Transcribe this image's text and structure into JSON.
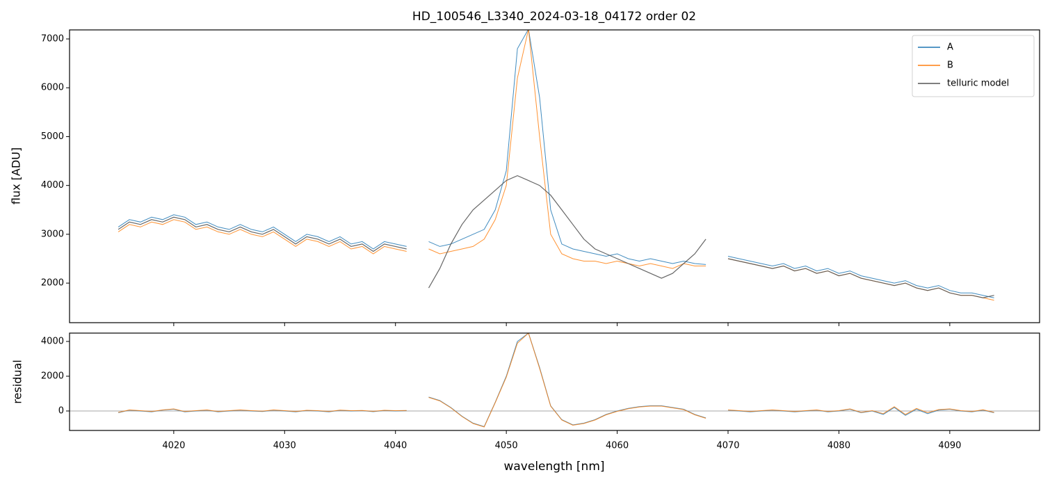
{
  "chart_data": [
    {
      "type": "line",
      "title": "HD_100546_L3340_2024-03-18_04172  order 02",
      "ylabel": "flux [ADU]",
      "x": [
        4015,
        4016,
        4017,
        4018,
        4019,
        4020,
        4021,
        4022,
        4023,
        4024,
        4025,
        4026,
        4027,
        4028,
        4029,
        4030,
        4031,
        4032,
        4033,
        4034,
        4035,
        4036,
        4037,
        4038,
        4039,
        4040,
        4041,
        4042,
        4043,
        4044,
        4045,
        4046,
        4047,
        4048,
        4049,
        4050,
        4051,
        4052,
        4053,
        4054,
        4055,
        4056,
        4057,
        4058,
        4059,
        4060,
        4061,
        4062,
        4063,
        4064,
        4065,
        4066,
        4067,
        4068,
        4069,
        4070,
        4071,
        4072,
        4073,
        4074,
        4075,
        4076,
        4077,
        4078,
        4079,
        4080,
        4081,
        4082,
        4083,
        4084,
        4085,
        4086,
        4087,
        4088,
        4089,
        4090,
        4091,
        4092,
        4093,
        4094
      ],
      "series": [
        {
          "name": "A",
          "color": "#1f77b4",
          "values": [
            3150,
            3300,
            3250,
            3350,
            3300,
            3400,
            3350,
            3200,
            3250,
            3150,
            3100,
            3200,
            3100,
            3050,
            3150,
            3000,
            2850,
            3000,
            2950,
            2850,
            2950,
            2800,
            2850,
            2700,
            2850,
            2800,
            2750,
            null,
            2850,
            2750,
            2800,
            2900,
            3000,
            3100,
            3500,
            4300,
            6800,
            7200,
            5800,
            3500,
            2800,
            2700,
            2650,
            2600,
            2550,
            2600,
            2500,
            2450,
            2500,
            2450,
            2400,
            2450,
            2400,
            2380,
            null,
            2550,
            2500,
            2450,
            2400,
            2350,
            2400,
            2300,
            2350,
            2250,
            2300,
            2200,
            2250,
            2150,
            2100,
            2050,
            2000,
            2050,
            1950,
            1900,
            1950,
            1850,
            1800,
            1800,
            1750,
            1700
          ]
        },
        {
          "name": "B",
          "color": "#ff7f0e",
          "values": [
            3050,
            3200,
            3150,
            3250,
            3200,
            3300,
            3250,
            3100,
            3150,
            3050,
            3000,
            3100,
            3000,
            2950,
            3050,
            2900,
            2750,
            2900,
            2850,
            2750,
            2850,
            2700,
            2750,
            2600,
            2750,
            2700,
            2650,
            null,
            2700,
            2600,
            2650,
            2700,
            2750,
            2900,
            3300,
            4000,
            6200,
            7200,
            5000,
            3000,
            2600,
            2500,
            2450,
            2450,
            2400,
            2450,
            2400,
            2350,
            2400,
            2350,
            2300,
            2400,
            2350,
            2350,
            null,
            2500,
            2450,
            2400,
            2350,
            2300,
            2350,
            2250,
            2300,
            2200,
            2250,
            2150,
            2200,
            2100,
            2050,
            2000,
            1950,
            2000,
            1900,
            1850,
            1900,
            1800,
            1750,
            1750,
            1700,
            1650
          ]
        },
        {
          "name": "telluric model",
          "color": "#555555",
          "values": [
            3100,
            3250,
            3200,
            3300,
            3250,
            3350,
            3300,
            3150,
            3200,
            3100,
            3050,
            3150,
            3050,
            3000,
            3100,
            2950,
            2800,
            2950,
            2900,
            2800,
            2900,
            2750,
            2800,
            2650,
            2800,
            2750,
            2700,
            null,
            1900,
            2300,
            2800,
            3200,
            3500,
            3700,
            3900,
            4100,
            4200,
            4100,
            4000,
            3800,
            3500,
            3200,
            2900,
            2700,
            2600,
            2500,
            2400,
            2300,
            2200,
            2100,
            2200,
            2400,
            2600,
            2900,
            null,
            2500,
            2450,
            2400,
            2350,
            2300,
            2350,
            2250,
            2300,
            2200,
            2250,
            2150,
            2200,
            2100,
            2050,
            2000,
            1950,
            2000,
            1900,
            1850,
            1900,
            1800,
            1750,
            1750,
            1700,
            1750
          ]
        }
      ],
      "xlim": [
        4010.6,
        4098.1
      ],
      "ylim": [
        1190,
        7185
      ],
      "yticks": [
        2000,
        3000,
        4000,
        5000,
        6000,
        7000
      ],
      "legend": "upper right"
    },
    {
      "type": "line",
      "ylabel": "residual",
      "xlabel": "wavelength [nm]",
      "x": [
        4015,
        4016,
        4017,
        4018,
        4019,
        4020,
        4021,
        4022,
        4023,
        4024,
        4025,
        4026,
        4027,
        4028,
        4029,
        4030,
        4031,
        4032,
        4033,
        4034,
        4035,
        4036,
        4037,
        4038,
        4039,
        4040,
        4041,
        4042,
        4043,
        4044,
        4045,
        4046,
        4047,
        4048,
        4049,
        4050,
        4051,
        4052,
        4053,
        4054,
        4055,
        4056,
        4057,
        4058,
        4059,
        4060,
        4061,
        4062,
        4063,
        4064,
        4065,
        4066,
        4067,
        4068,
        4069,
        4070,
        4071,
        4072,
        4073,
        4074,
        4075,
        4076,
        4077,
        4078,
        4079,
        4080,
        4081,
        4082,
        4083,
        4084,
        4085,
        4086,
        4087,
        4088,
        4089,
        4090,
        4091,
        4092,
        4093,
        4094
      ],
      "series": [
        {
          "name": "A",
          "color": "#1f77b4",
          "values": [
            -100,
            50,
            0,
            -50,
            50,
            100,
            -50,
            0,
            50,
            -50,
            0,
            50,
            0,
            -30,
            50,
            0,
            -50,
            30,
            0,
            -50,
            40,
            0,
            20,
            -40,
            30,
            0,
            20,
            null,
            800,
            600,
            200,
            -300,
            -700,
            -900,
            500,
            2000,
            4000,
            4480,
            2500,
            300,
            -500,
            -800,
            -700,
            -500,
            -200,
            0,
            150,
            250,
            300,
            300,
            200,
            100,
            -200,
            -400,
            null,
            50,
            0,
            -50,
            0,
            50,
            0,
            -50,
            0,
            50,
            -50,
            0,
            100,
            -100,
            0,
            -200,
            200,
            -250,
            100,
            -150,
            50,
            100,
            0,
            -50,
            50,
            -100
          ]
        },
        {
          "name": "B",
          "color": "#ff7f0e",
          "values": [
            -80,
            60,
            20,
            -30,
            60,
            120,
            -30,
            20,
            60,
            -30,
            20,
            60,
            20,
            -10,
            60,
            20,
            -30,
            40,
            20,
            -30,
            50,
            20,
            30,
            -20,
            40,
            20,
            30,
            null,
            780,
            580,
            180,
            -320,
            -720,
            -920,
            480,
            1950,
            3900,
            4480,
            2450,
            280,
            -520,
            -820,
            -720,
            -520,
            -220,
            -20,
            130,
            230,
            280,
            280,
            180,
            80,
            -220,
            -420,
            null,
            60,
            20,
            -30,
            20,
            60,
            20,
            -30,
            20,
            60,
            -30,
            20,
            120,
            -80,
            20,
            -150,
            250,
            -200,
            150,
            -100,
            80,
            120,
            20,
            -30,
            70,
            -80
          ]
        }
      ],
      "hline": 0,
      "xlim": [
        4010.6,
        4098.1
      ],
      "ylim": [
        -1120,
        4480
      ],
      "yticks": [
        0,
        2000,
        4000
      ],
      "xticks": [
        4020,
        4030,
        4040,
        4050,
        4060,
        4070,
        4080,
        4090
      ]
    }
  ]
}
